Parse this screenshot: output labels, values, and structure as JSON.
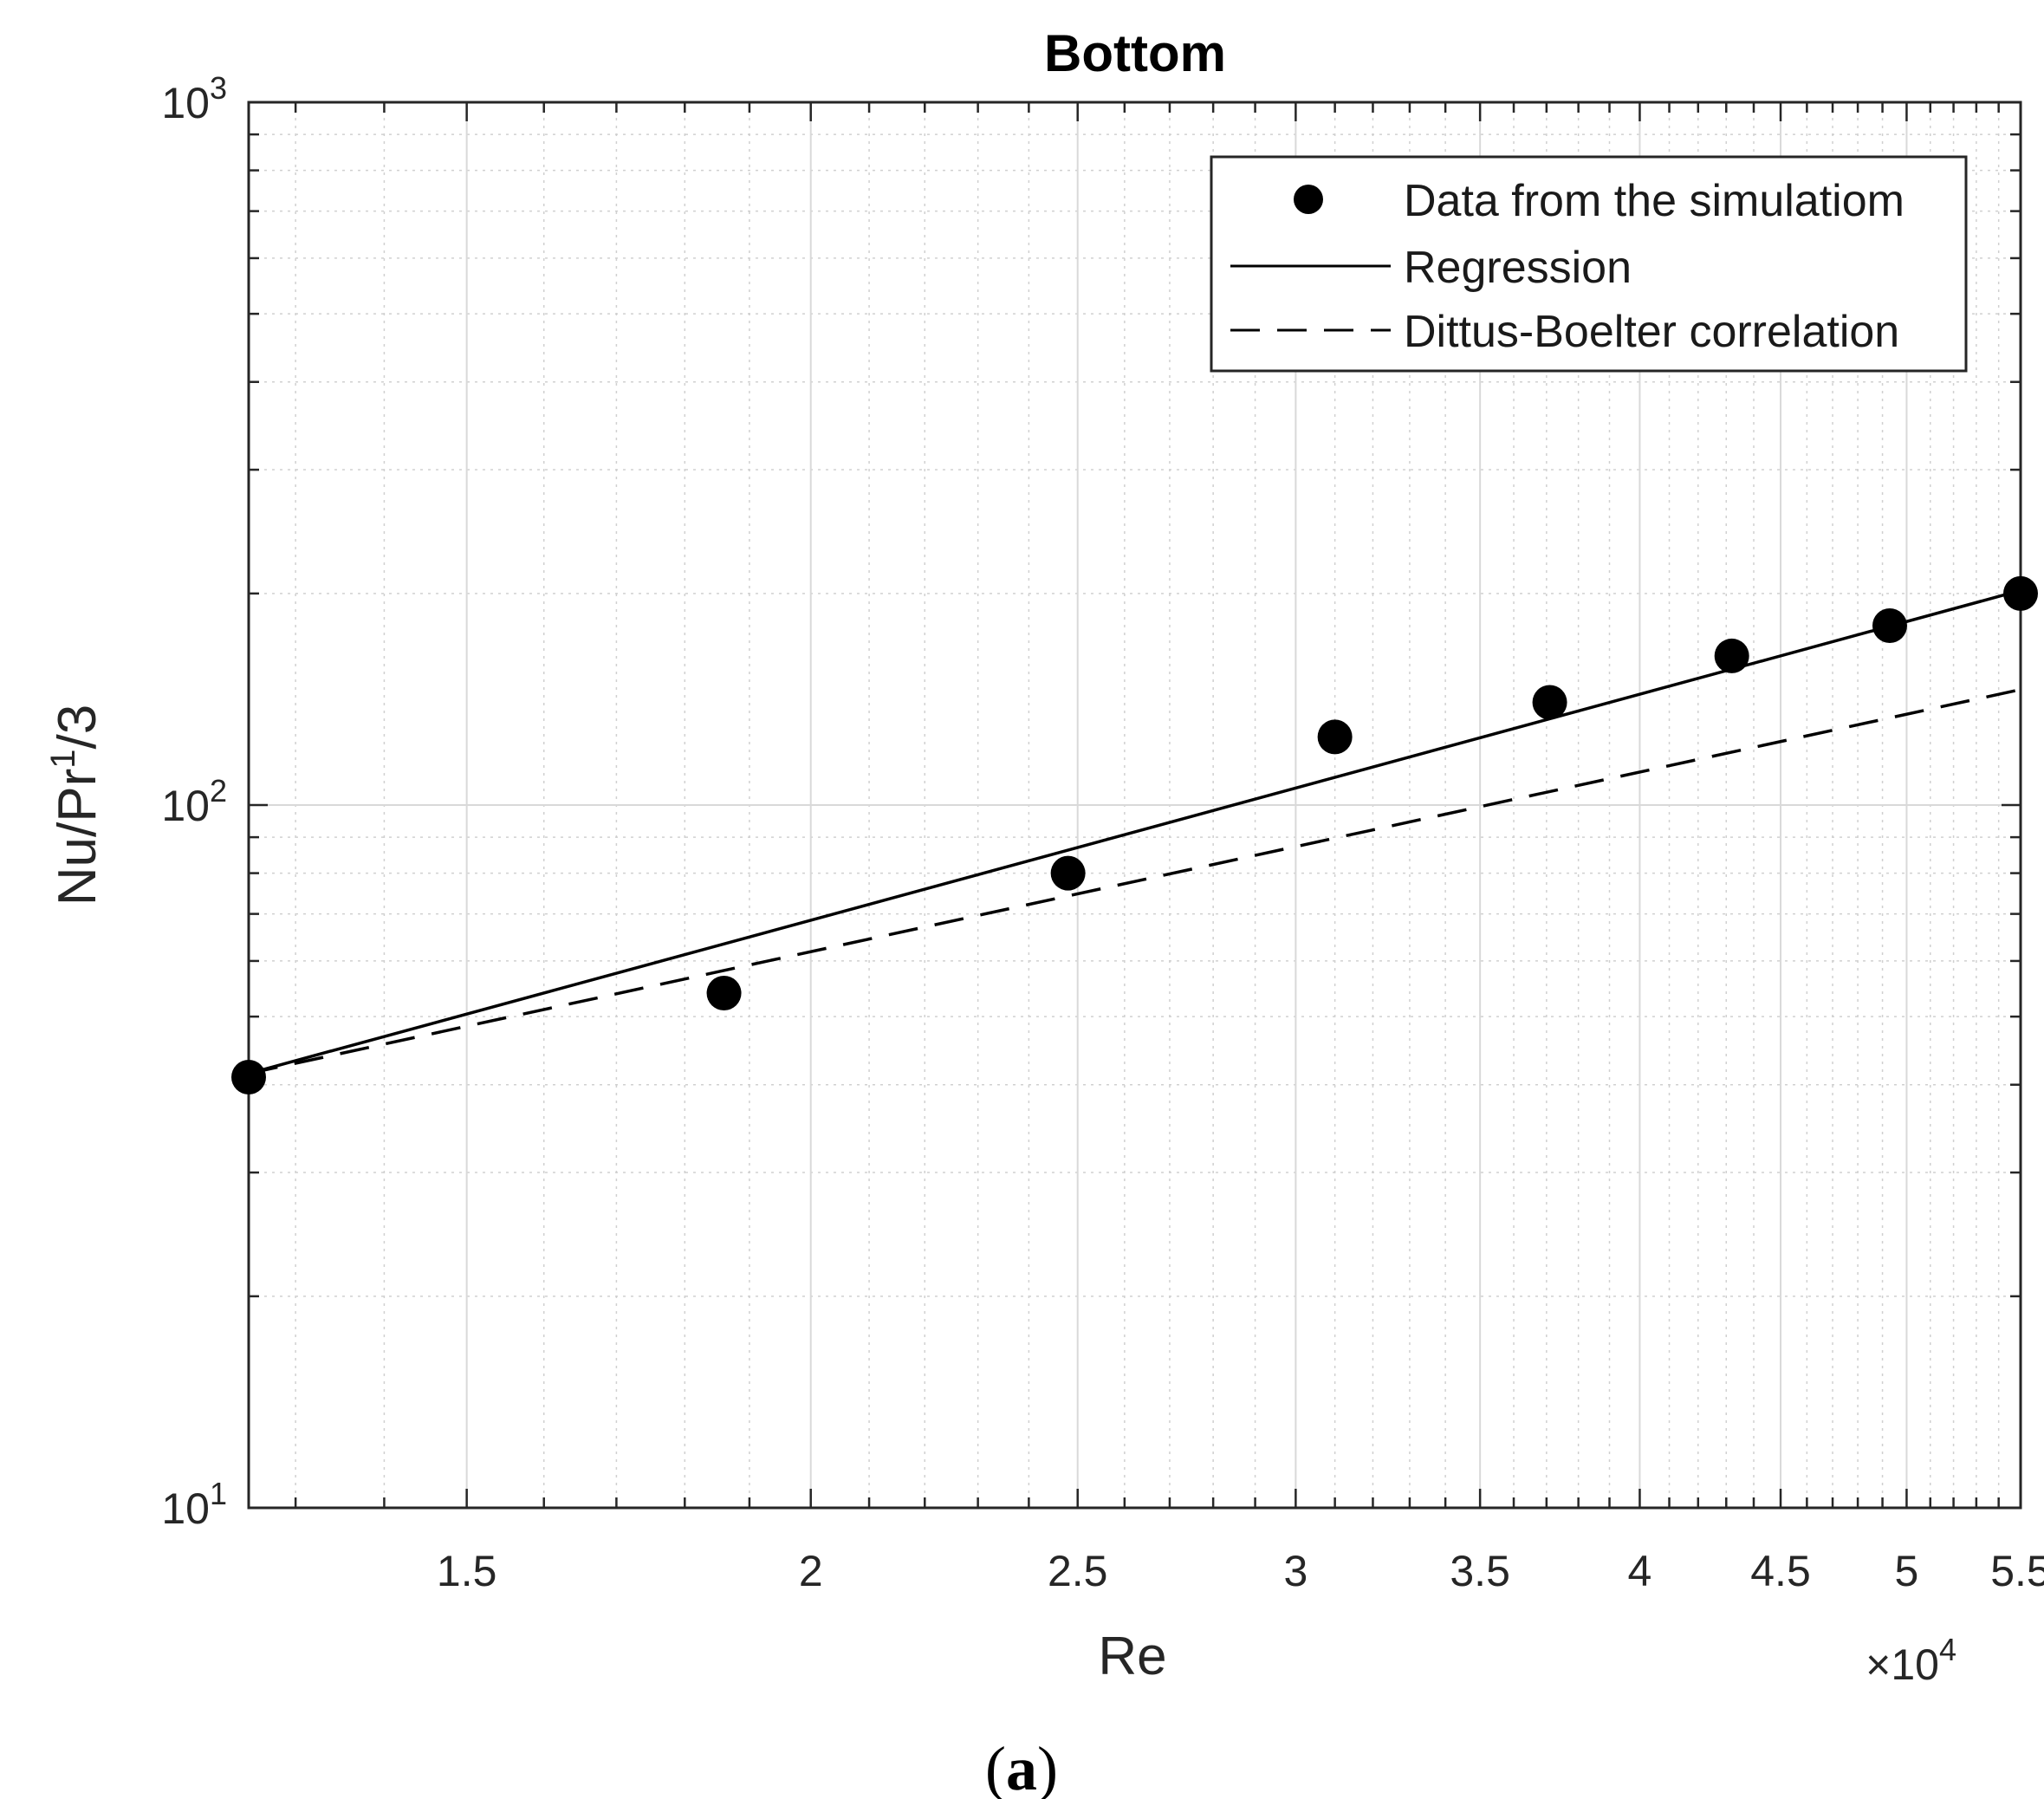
{
  "chart_data": {
    "type": "line",
    "title": "Bottom",
    "xlabel": "Re",
    "ylabel_base": "Nu/Pr",
    "ylabel_exp": "1",
    "ylabel_tail": "/3",
    "x_scale": "log",
    "y_scale": "log",
    "xlim": [
      12500,
      55000
    ],
    "ylim": [
      10,
      1000
    ],
    "x_exponent_label": {
      "prefix": "×10",
      "exp": "4"
    },
    "x_ticks": [
      {
        "value": 15000,
        "label": "1.5"
      },
      {
        "value": 20000,
        "label": "2"
      },
      {
        "value": 25000,
        "label": "2.5"
      },
      {
        "value": 30000,
        "label": "3"
      },
      {
        "value": 35000,
        "label": "3.5"
      },
      {
        "value": 40000,
        "label": "4"
      },
      {
        "value": 45000,
        "label": "4.5"
      },
      {
        "value": 50000,
        "label": "5"
      },
      {
        "value": 55000,
        "label": "5.5"
      }
    ],
    "y_ticks": [
      {
        "value": 10,
        "base": "10",
        "exp": "1"
      },
      {
        "value": 100,
        "base": "10",
        "exp": "2"
      },
      {
        "value": 1000,
        "base": "10",
        "exp": "3"
      }
    ],
    "grid": true,
    "legend_position": "top-right",
    "series": [
      {
        "name": "Data from the simulatiom",
        "style": "markers",
        "color": "#000000",
        "points": [
          {
            "x": 12500,
            "y": 41
          },
          {
            "x": 18600,
            "y": 54
          },
          {
            "x": 24800,
            "y": 80
          },
          {
            "x": 31000,
            "y": 125
          },
          {
            "x": 37100,
            "y": 140
          },
          {
            "x": 43200,
            "y": 163
          },
          {
            "x": 49300,
            "y": 180
          },
          {
            "x": 55000,
            "y": 200
          }
        ]
      },
      {
        "name": "Regression",
        "style": "solid",
        "color": "#000000",
        "points": [
          {
            "x": 12500,
            "y": 41.5
          },
          {
            "x": 55000,
            "y": 202
          }
        ]
      },
      {
        "name": "Dittus-Boelter correlation",
        "style": "dashed",
        "color": "#000000",
        "points": [
          {
            "x": 12500,
            "y": 41.5
          },
          {
            "x": 55000,
            "y": 146
          }
        ]
      }
    ]
  },
  "panel_label": {
    "open": "(",
    "letter": "a",
    "close": ")"
  }
}
